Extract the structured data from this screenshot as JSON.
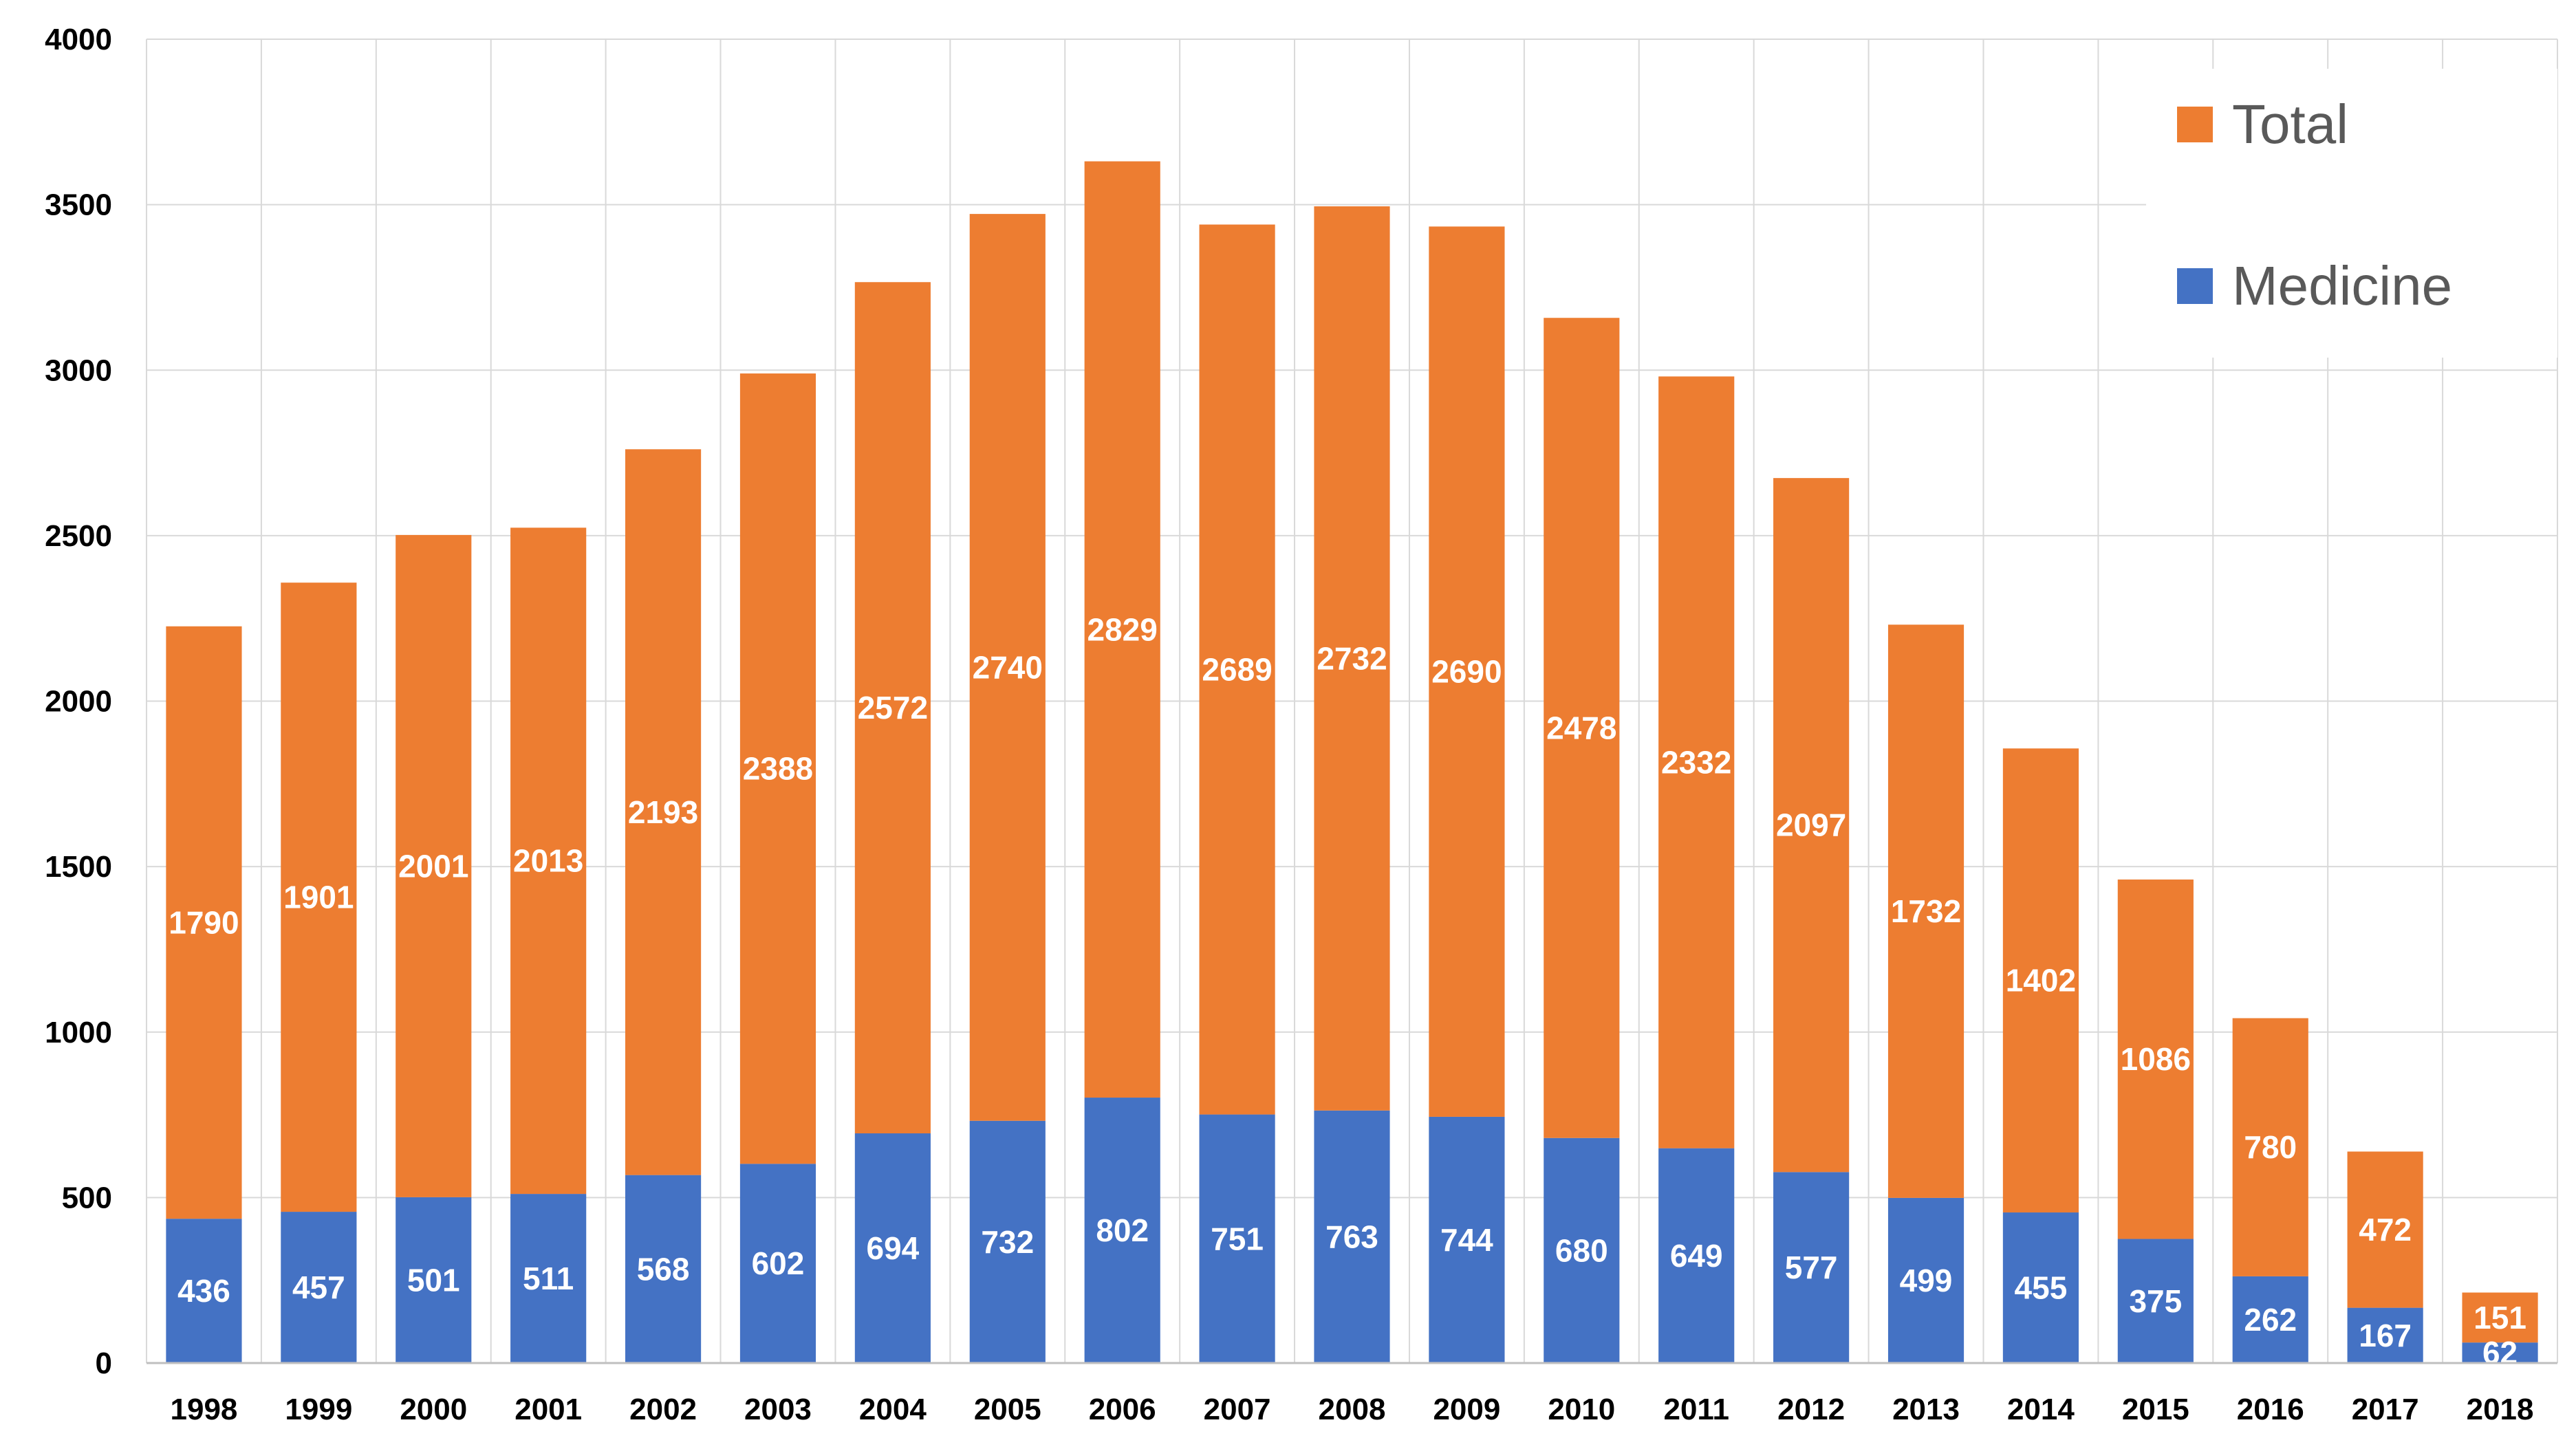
{
  "chart_data": {
    "type": "bar",
    "stacked": true,
    "title": "",
    "xlabel": "",
    "ylabel": "",
    "ylim": [
      0,
      4000
    ],
    "yticks": [
      0,
      500,
      1000,
      1500,
      2000,
      2500,
      3000,
      3500,
      4000
    ],
    "grid": true,
    "legend_position": "top-right",
    "categories": [
      "1998",
      "1999",
      "2000",
      "2001",
      "2002",
      "2003",
      "2004",
      "2005",
      "2006",
      "2007",
      "2008",
      "2009",
      "2010",
      "2011",
      "2012",
      "2013",
      "2014",
      "2015",
      "2016",
      "2017",
      "2018"
    ],
    "series": [
      {
        "name": "Medicine",
        "color": "#4472C4",
        "values": [
          436,
          457,
          501,
          511,
          568,
          602,
          694,
          732,
          802,
          751,
          763,
          744,
          680,
          649,
          577,
          499,
          455,
          375,
          262,
          167,
          62
        ]
      },
      {
        "name": "Total",
        "color": "#ED7D31",
        "values": [
          1790,
          1901,
          2001,
          2013,
          2193,
          2388,
          2572,
          2740,
          2829,
          2689,
          2732,
          2690,
          2478,
          2332,
          2097,
          1732,
          1402,
          1086,
          780,
          472,
          151
        ]
      }
    ],
    "legend": [
      {
        "label": "Total",
        "color": "#ED7D31"
      },
      {
        "label": "Medicine",
        "color": "#4472C4"
      }
    ]
  }
}
